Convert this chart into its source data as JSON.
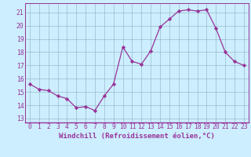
{
  "x": [
    0,
    1,
    2,
    3,
    4,
    5,
    6,
    7,
    8,
    9,
    10,
    11,
    12,
    13,
    14,
    15,
    16,
    17,
    18,
    19,
    20,
    21,
    22,
    23
  ],
  "y": [
    15.6,
    15.2,
    15.1,
    14.7,
    14.5,
    13.8,
    13.9,
    13.6,
    14.7,
    15.6,
    18.4,
    17.3,
    17.1,
    18.1,
    19.9,
    20.5,
    21.1,
    21.2,
    21.1,
    21.2,
    19.8,
    18.0,
    17.3,
    17.0
  ],
  "line_color": "#993399",
  "marker": "D",
  "marker_size": 2.2,
  "bg_color": "#cceeff",
  "grid_color": "#99bbcc",
  "xlabel": "Windchill (Refroidissement éolien,°C)",
  "ytick_labels": [
    "13",
    "14",
    "15",
    "16",
    "17",
    "18",
    "19",
    "20",
    "21"
  ],
  "ytick_vals": [
    13,
    14,
    15,
    16,
    17,
    18,
    19,
    20,
    21
  ],
  "xlim": [
    -0.5,
    23.5
  ],
  "ylim": [
    12.7,
    21.7
  ],
  "xtick_labels": [
    "0",
    "1",
    "2",
    "3",
    "4",
    "5",
    "6",
    "7",
    "8",
    "9",
    "10",
    "11",
    "12",
    "13",
    "14",
    "15",
    "16",
    "17",
    "18",
    "19",
    "20",
    "21",
    "22",
    "23"
  ],
  "tick_fontsize": 5.8,
  "xlabel_fontsize": 6.5
}
